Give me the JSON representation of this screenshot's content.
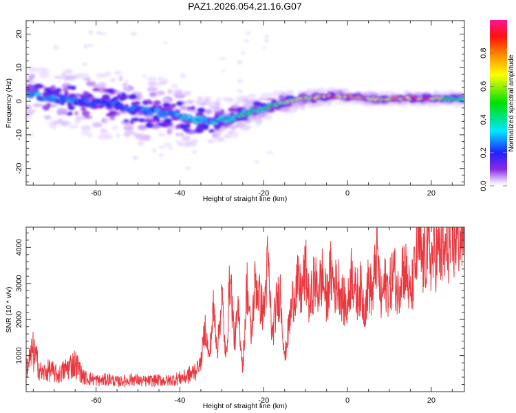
{
  "title": "PAZ1.2026.054.21.16.G07",
  "chart_data": [
    {
      "type": "heatmap",
      "title": "PAZ1.2026.054.21.16.G07",
      "xlabel": "Height of straight line (km)",
      "ylabel": "Frequency (Hz)",
      "xlim": [
        -76.7,
        27.9
      ],
      "ylim": [
        -25,
        24
      ],
      "xticks": [
        -60,
        -40,
        -20,
        0,
        20
      ],
      "xtick_labels": [
        "-60",
        "-40",
        "-20",
        "0",
        "20"
      ],
      "yticks": [
        -20,
        -10,
        0,
        10,
        20
      ],
      "ytick_labels": [
        "-20",
        "-10",
        "0",
        "10",
        "20"
      ],
      "colorbar": {
        "label": "Normalized spectral amplitude",
        "range": [
          0,
          1
        ],
        "ticks": [
          0.0,
          0.2,
          0.4,
          0.6,
          0.8
        ],
        "tick_labels": [
          "0.0",
          "0.2",
          "0.4",
          "0.6",
          "0.8"
        ],
        "colors": [
          "#ffffff",
          "#e8d8ff",
          "#8a2be2",
          "#2020ff",
          "#00e8ff",
          "#00e000",
          "#ffff00",
          "#ff8000",
          "#ff1010",
          "#ff1493"
        ]
      },
      "ridge": {
        "x": [
          -76,
          -72,
          -68,
          -64,
          -60,
          -56,
          -52,
          -48,
          -44,
          -40,
          -36,
          -32,
          -28,
          -24,
          -20,
          -16,
          -12,
          -8,
          -4,
          0,
          4,
          8,
          12,
          16,
          20,
          24,
          27.9
        ],
        "freq": [
          2.5,
          1.0,
          0.5,
          0.0,
          -0.5,
          -1.0,
          -2.0,
          -3.0,
          -3.5,
          -4.5,
          -5.5,
          -6.0,
          -5.0,
          -3.5,
          -2.0,
          -0.5,
          0.5,
          1.0,
          1.5,
          1.5,
          1.0,
          0.5,
          1.0,
          0.8,
          0.8,
          0.8,
          0.5
        ],
        "amplitude": [
          0.3,
          0.3,
          0.3,
          0.25,
          0.25,
          0.25,
          0.25,
          0.3,
          0.3,
          0.35,
          0.35,
          0.35,
          0.4,
          0.45,
          0.5,
          0.6,
          0.7,
          0.8,
          0.9,
          0.85,
          0.8,
          0.75,
          0.8,
          0.9,
          0.9,
          0.5,
          0.45
        ]
      },
      "scatter_spread": {
        "x": [
          -76,
          -60,
          -44,
          -30,
          -20,
          -10,
          0,
          27.9
        ],
        "freq_spread_hz": [
          6,
          8,
          8,
          5,
          3,
          2,
          1.5,
          1.5
        ]
      }
    },
    {
      "type": "line",
      "xlabel": "Height of straight line (km)",
      "ylabel": "SNR (10 * v/v)",
      "xlim": [
        -76.7,
        27.9
      ],
      "ylim": [
        0,
        4560
      ],
      "xticks": [
        -60,
        -40,
        -20,
        0,
        20
      ],
      "xtick_labels": [
        "-60",
        "-40",
        "-20",
        "0",
        "20"
      ],
      "yticks": [
        1000,
        2000,
        3000,
        4000
      ],
      "ytick_labels": [
        "1000",
        "2000",
        "3000",
        "4000"
      ],
      "series": [
        {
          "name": "SNR",
          "color": "#e8222a",
          "x": [
            -76.5,
            -75,
            -73,
            -71,
            -69,
            -67,
            -65,
            -63,
            -61,
            -59,
            -57,
            -55,
            -53,
            -51,
            -49,
            -47,
            -45,
            -43,
            -41,
            -39,
            -37,
            -35,
            -34,
            -33,
            -32,
            -31,
            -30,
            -29,
            -28,
            -27,
            -26,
            -25,
            -24,
            -23,
            -22,
            -21,
            -20,
            -19,
            -18,
            -17,
            -16,
            -15,
            -14,
            -13,
            -12,
            -11,
            -10,
            -9,
            -8,
            -7,
            -6,
            -5,
            -4,
            -3,
            -2,
            -1,
            0,
            1,
            2,
            3,
            4,
            5,
            6,
            7,
            8,
            9,
            10,
            11,
            12,
            13,
            14,
            15,
            16,
            17,
            18,
            19,
            20,
            21,
            22,
            23,
            24,
            25,
            26,
            27.5
          ],
          "y": [
            700,
            1100,
            500,
            600,
            450,
            650,
            800,
            400,
            350,
            300,
            350,
            280,
            300,
            350,
            280,
            300,
            320,
            300,
            350,
            400,
            500,
            800,
            1800,
            900,
            2300,
            1200,
            2700,
            800,
            3300,
            1400,
            2200,
            600,
            3000,
            1500,
            3100,
            2600,
            2200,
            3600,
            1500,
            2400,
            2800,
            900,
            1800,
            2600,
            3000,
            2700,
            3400,
            2300,
            3100,
            2800,
            3200,
            2500,
            3300,
            2900,
            3000,
            2500,
            2300,
            3400,
            2600,
            2900,
            2300,
            3000,
            2700,
            3900,
            2500,
            3000,
            2800,
            3400,
            2700,
            3500,
            3300,
            2600,
            3300,
            4100,
            3500,
            3900,
            3700,
            3800,
            3900,
            3700,
            4100,
            4000,
            4300,
            4400
          ]
        }
      ]
    }
  ]
}
